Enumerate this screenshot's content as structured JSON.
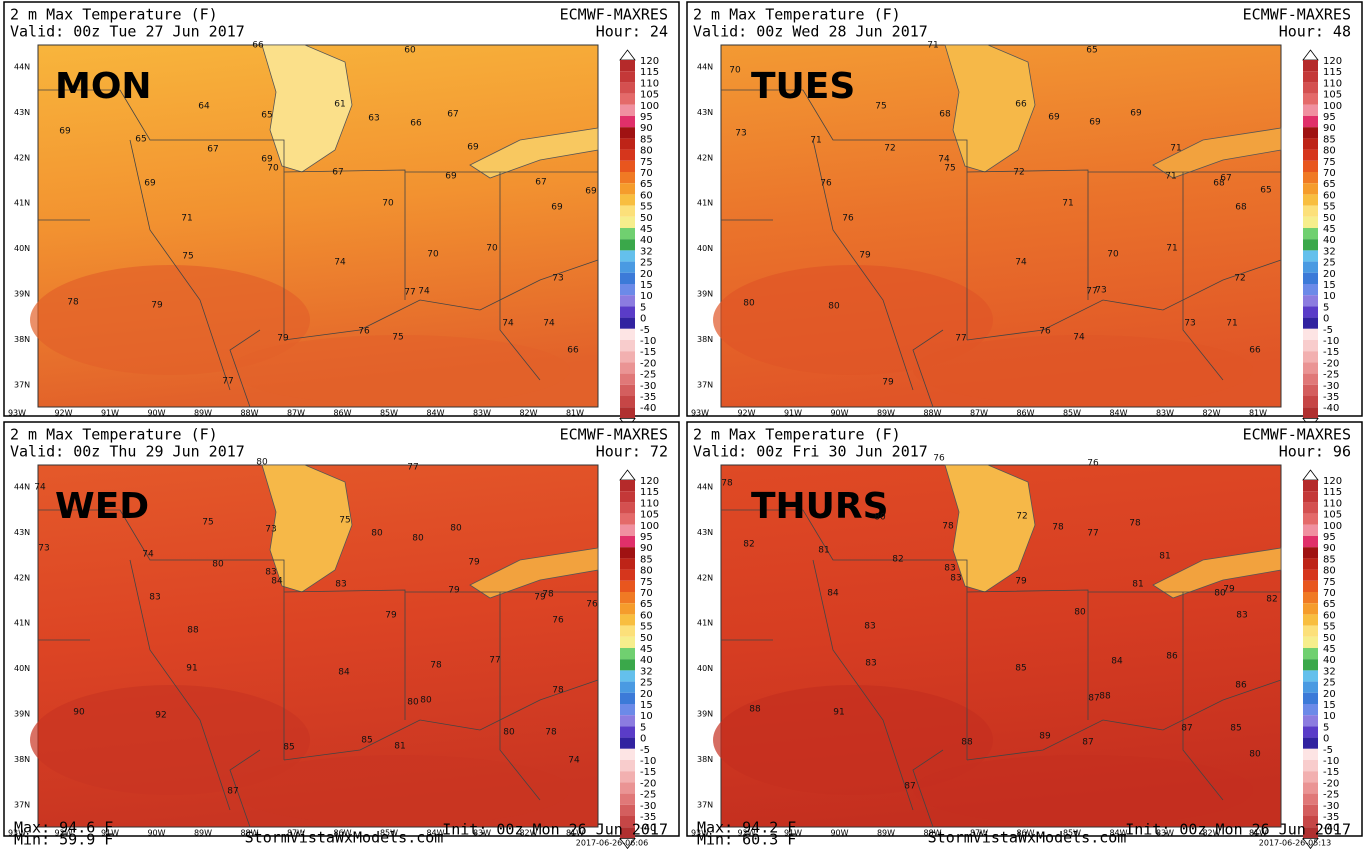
{
  "panels": [
    {
      "title": "2 m Max Temperature (F)",
      "valid": "Valid: 00z Tue 27 Jun 2017",
      "model": "ECMWF-MAXRES",
      "hour": "Hour: 24",
      "day": "MON",
      "stations": [
        66,
        60,
        61,
        64,
        65,
        63,
        66,
        67,
        69,
        65,
        67,
        69,
        70,
        67,
        69,
        69,
        67,
        69,
        69,
        70,
        69,
        71,
        75,
        74,
        70,
        70,
        73,
        78,
        79,
        77,
        74,
        74,
        74,
        79,
        76,
        75,
        66,
        77
      ],
      "colors": [
        "#f8b53c",
        "#f29230",
        "#e2612a"
      ]
    },
    {
      "title": "2 m Max Temperature (F)",
      "valid": "Valid: 00z Wed 28 Jun 2017",
      "model": "ECMWF-MAXRES",
      "hour": "Hour: 48",
      "day": "TUES",
      "stations": [
        71,
        65,
        70,
        75,
        68,
        66,
        69,
        69,
        69,
        73,
        71,
        72,
        74,
        75,
        72,
        71,
        71,
        68,
        67,
        65,
        76,
        71,
        68,
        76,
        79,
        74,
        70,
        71,
        72,
        80,
        80,
        77,
        73,
        73,
        71,
        77,
        76,
        74,
        66,
        79
      ],
      "colors": [
        "#f39a33",
        "#ea732b",
        "#e05527"
      ]
    },
    {
      "title": "2 m Max Temperature (F)",
      "valid": "Valid: 00z Thu 29 Jun 2017",
      "model": "ECMWF-MAXRES",
      "hour": "Hour: 72",
      "day": "WED",
      "stations": [
        80,
        77,
        74,
        75,
        73,
        75,
        80,
        80,
        80,
        73,
        74,
        80,
        79,
        83,
        84,
        83,
        79,
        78,
        79,
        76,
        83,
        79,
        76,
        88,
        91,
        84,
        78,
        77,
        78,
        90,
        92,
        80,
        80,
        80,
        78,
        85,
        85,
        81,
        74,
        87
      ],
      "colors": [
        "#e4592a",
        "#dc4424",
        "#c93522"
      ],
      "max": "Max: 94.6 F",
      "min": "Min: 59.9 F",
      "site": "StormVistaWxModels.com",
      "init": "Init: 00z Mon 26 Jun 2017",
      "stamp": "2017-06-26-06:06"
    },
    {
      "title": "2 m Max Temperature (F)",
      "valid": "Valid: 00z Fri 30 Jun 2017",
      "model": "ECMWF-MAXRES",
      "hour": "Hour: 96",
      "day": "THURS",
      "stations": [
        76,
        76,
        78,
        80,
        78,
        72,
        78,
        77,
        78,
        82,
        81,
        82,
        83,
        83,
        79,
        81,
        81,
        80,
        79,
        82,
        84,
        80,
        83,
        83,
        83,
        85,
        84,
        86,
        86,
        88,
        91,
        87,
        88,
        87,
        85,
        80,
        88,
        89,
        87,
        87
      ],
      "colors": [
        "#df4a25",
        "#d63d22",
        "#c42f1f"
      ],
      "max": "Max: 94.2 F",
      "min": "Min: 60.3 F",
      "site": "StormVistaWxModels.com",
      "init": "Init: 00z Mon 26 Jun 2017",
      "stamp": "2017-06-26-05:13"
    }
  ],
  "lat_labels": [
    "44N",
    "43N",
    "42N",
    "41N",
    "40N",
    "39N",
    "38N",
    "37N"
  ],
  "lon_labels": [
    "93W",
    "92W",
    "91W",
    "90W",
    "89W",
    "88W",
    "87W",
    "86W",
    "85W",
    "84W",
    "83W",
    "82W",
    "81W"
  ],
  "colorbar": {
    "labels": [
      "120",
      "115",
      "110",
      "105",
      "100",
      "95",
      "90",
      "85",
      "80",
      "75",
      "70",
      "65",
      "60",
      "55",
      "50",
      "45",
      "40",
      "32",
      "25",
      "20",
      "15",
      "10",
      "5",
      "0",
      "-5",
      "-10",
      "-15",
      "-20",
      "-25",
      "-30",
      "-35",
      "-40"
    ],
    "colors": [
      "#b52a2a",
      "#c43838",
      "#d45050",
      "#e46a6a",
      "#f090a0",
      "#e0306a",
      "#a01212",
      "#be2418",
      "#d6361c",
      "#e8561e",
      "#f07a24",
      "#f59c2c",
      "#f8be40",
      "#fce07a",
      "#f6ee8c",
      "#70d070",
      "#3aa84a",
      "#64c0ec",
      "#4a9ae2",
      "#3c7ad8",
      "#6c8ae8",
      "#8c7ce0",
      "#5a3cc8",
      "#3222a0",
      "#fde4e4",
      "#f8cccc",
      "#f2b0b0",
      "#ea9494",
      "#e07878",
      "#d45e5e",
      "#c64646",
      "#b03030"
    ]
  }
}
